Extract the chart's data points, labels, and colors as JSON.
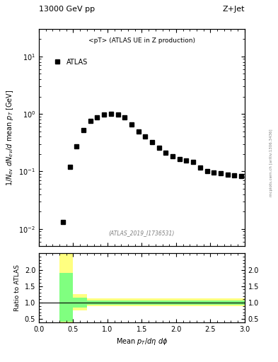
{
  "title_top": "13000 GeV pp",
  "title_right": "Z+Jet",
  "legend_label": "<pT> (ATLAS UE in Z production)",
  "data_label": "ATLAS",
  "watermark": "(ATLAS_2019_I1736531)",
  "arxiv_text": "mcplots.cern.ch [arXiv:1306.3436]",
  "xlabel": "Mean $p_T/d\\eta\\ d\\phi$",
  "ylabel": "$1/N_{ev}\\ dN_{ev}/d$ mean $p_T$ [GeV]",
  "ratio_ylabel": "Ratio to ATLAS",
  "x_data": [
    0.35,
    0.45,
    0.55,
    0.65,
    0.75,
    0.85,
    0.95,
    1.05,
    1.15,
    1.25,
    1.35,
    1.45,
    1.55,
    1.65,
    1.75,
    1.85,
    1.95,
    2.05,
    2.15,
    2.25,
    2.35,
    2.45,
    2.55,
    2.65,
    2.75,
    2.85,
    2.95
  ],
  "y_data": [
    0.013,
    0.12,
    0.27,
    0.52,
    0.75,
    0.88,
    0.97,
    1.0,
    0.97,
    0.87,
    0.65,
    0.5,
    0.4,
    0.32,
    0.26,
    0.21,
    0.185,
    0.165,
    0.155,
    0.145,
    0.115,
    0.1,
    0.095,
    0.092,
    0.088,
    0.085,
    0.082
  ],
  "main_ylim_log": [
    0.005,
    30
  ],
  "main_xlim": [
    0.0,
    3.0
  ],
  "ratio_xlim": [
    0.0,
    3.0
  ],
  "ratio_ylim": [
    0.4,
    2.5
  ],
  "ratio_yticks": [
    0.5,
    1.0,
    1.5,
    2.0
  ],
  "yellow_x": [
    0.3,
    0.5,
    0.7,
    3.0
  ],
  "yellow_ylow": [
    0.3,
    0.75,
    0.88,
    0.88
  ],
  "yellow_yhigh": [
    2.5,
    1.25,
    1.12,
    1.12
  ],
  "green_x": [
    0.3,
    0.5,
    0.7,
    3.0
  ],
  "green_ylow": [
    0.42,
    0.85,
    0.93,
    0.93
  ],
  "green_yhigh": [
    1.9,
    1.15,
    1.07,
    1.07
  ],
  "marker_color": "black",
  "marker_style": "s",
  "marker_size": 4,
  "yellow_color": "#ffff80",
  "green_color": "#80ff80",
  "ref_line_color": "black"
}
